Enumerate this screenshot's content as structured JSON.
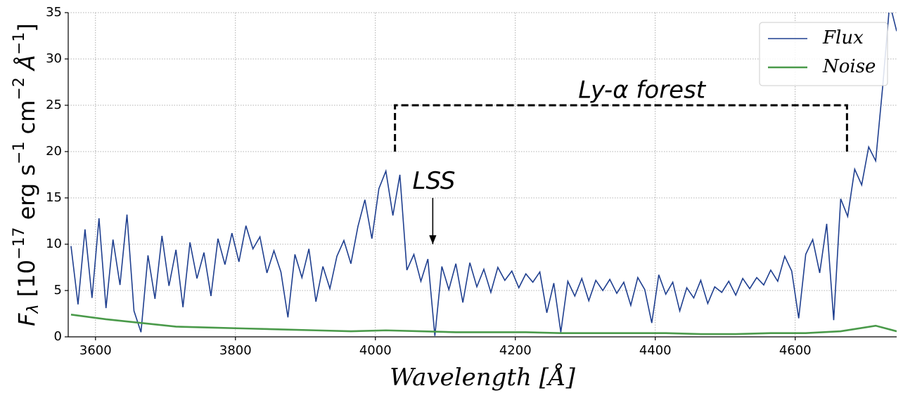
{
  "chart_data": {
    "type": "line",
    "xlabel": "Wavelength [Å]",
    "ylabel": [
      "F",
      "λ",
      " [10",
      "−17",
      " erg s",
      "−1",
      " cm",
      "−2",
      " Å",
      "−1",
      "]"
    ],
    "xlim": [
      3561,
      4745
    ],
    "xticks": [
      3600,
      3800,
      4000,
      4200,
      4400,
      4600
    ],
    "ylim": [
      0,
      35
    ],
    "yticks": [
      0,
      5,
      10,
      15,
      20,
      25,
      30,
      35
    ],
    "grid": true,
    "legend": "upper right",
    "series": [
      {
        "name": "Flux",
        "color": "#1f3f8f",
        "x": [
          3565,
          3575,
          3585,
          3595,
          3605,
          3615,
          3625,
          3635,
          3645,
          3655,
          3665,
          3675,
          3685,
          3695,
          3705,
          3715,
          3725,
          3735,
          3745,
          3755,
          3765,
          3775,
          3785,
          3795,
          3805,
          3815,
          3825,
          3835,
          3845,
          3855,
          3865,
          3875,
          3885,
          3895,
          3905,
          3915,
          3925,
          3935,
          3945,
          3955,
          3965,
          3975,
          3985,
          3995,
          4005,
          4015,
          4025,
          4035,
          4045,
          4055,
          4065,
          4075,
          4085,
          4095,
          4105,
          4115,
          4125,
          4135,
          4145,
          4155,
          4165,
          4175,
          4185,
          4195,
          4205,
          4215,
          4225,
          4235,
          4245,
          4255,
          4265,
          4275,
          4285,
          4295,
          4305,
          4315,
          4325,
          4335,
          4345,
          4355,
          4365,
          4375,
          4385,
          4395,
          4405,
          4415,
          4425,
          4435,
          4445,
          4455,
          4465,
          4475,
          4485,
          4495,
          4505,
          4515,
          4525,
          4535,
          4545,
          4555,
          4565,
          4575,
          4585,
          4595,
          4605,
          4615,
          4625,
          4635,
          4645,
          4655,
          4665,
          4675,
          4685,
          4695,
          4705,
          4715,
          4725,
          4735,
          4745
        ],
        "values": [
          9.8,
          3.5,
          11.6,
          4.2,
          12.8,
          3.1,
          10.5,
          5.6,
          13.2,
          2.8,
          0.5,
          8.8,
          4.1,
          10.9,
          5.5,
          9.4,
          3.2,
          10.2,
          6.3,
          9.1,
          4.4,
          10.6,
          7.8,
          11.2,
          8.1,
          12.0,
          9.5,
          10.8,
          6.9,
          9.3,
          7.0,
          2.1,
          8.9,
          6.4,
          9.5,
          3.8,
          7.6,
          5.2,
          8.7,
          10.4,
          7.9,
          11.9,
          14.8,
          10.6,
          16.0,
          17.9,
          13.1,
          17.5,
          7.2,
          8.9,
          6.0,
          8.4,
          0.1,
          7.6,
          5.1,
          7.9,
          3.7,
          8.0,
          5.4,
          7.3,
          4.8,
          7.5,
          6.1,
          7.1,
          5.3,
          6.8,
          5.9,
          7.0,
          2.6,
          5.8,
          0.5,
          6.0,
          4.4,
          6.3,
          3.9,
          6.1,
          5.0,
          6.2,
          4.7,
          5.9,
          3.4,
          6.4,
          5.1,
          1.5,
          6.7,
          4.6,
          5.9,
          2.8,
          5.3,
          4.2,
          6.1,
          3.6,
          5.4,
          4.8,
          6.0,
          4.5,
          6.3,
          5.2,
          6.4,
          5.6,
          7.2,
          6.0,
          8.7,
          7.1,
          2.0,
          8.9,
          10.5,
          6.9,
          12.2,
          1.8,
          14.9,
          13.0,
          18.1,
          16.4,
          20.5,
          19.0,
          27.0,
          36.0,
          33.0
        ]
      },
      {
        "name": "Noise",
        "color": "#4a9a4a",
        "x": [
          3565,
          3615,
          3665,
          3715,
          3765,
          3815,
          3865,
          3915,
          3965,
          4015,
          4065,
          4115,
          4165,
          4215,
          4265,
          4315,
          4365,
          4415,
          4465,
          4515,
          4565,
          4615,
          4665,
          4715,
          4745
        ],
        "values": [
          2.4,
          1.9,
          1.5,
          1.1,
          1.0,
          0.9,
          0.8,
          0.7,
          0.6,
          0.7,
          0.6,
          0.5,
          0.5,
          0.5,
          0.4,
          0.4,
          0.4,
          0.4,
          0.3,
          0.3,
          0.4,
          0.4,
          0.6,
          1.2,
          0.6
        ]
      }
    ],
    "annotations": [
      {
        "text": "Ly-α forest",
        "x": 4290,
        "y": 26.5
      },
      {
        "text": "LSS",
        "x": 4053,
        "y": 16.7
      }
    ],
    "bracket": {
      "x": [
        4028,
        4674
      ],
      "y": [
        20,
        25
      ]
    },
    "arrow": {
      "x": 4082,
      "y": [
        15,
        10
      ]
    }
  }
}
